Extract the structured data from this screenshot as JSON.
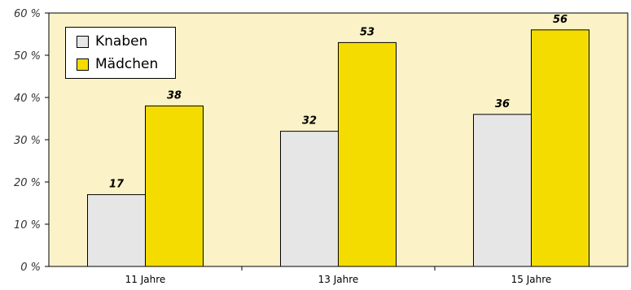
{
  "chart_data": {
    "type": "bar",
    "categories": [
      "11 Jahre",
      "13 Jahre",
      "15 Jahre"
    ],
    "series": [
      {
        "name": "Knaben",
        "values": [
          17,
          32,
          36
        ],
        "color": "#E6E6E6"
      },
      {
        "name": "Mädchen",
        "values": [
          38,
          53,
          56
        ],
        "color": "#F5DC00"
      }
    ],
    "ylim": [
      0,
      60
    ],
    "yticks": [
      0,
      10,
      20,
      30,
      40,
      50,
      60
    ],
    "ytick_labels": [
      "0 %",
      "10 %",
      "20 %",
      "30 %",
      "40 %",
      "50 %",
      "60 %"
    ],
    "data_labels": [
      [
        "17",
        "32",
        "36"
      ],
      [
        "38",
        "53",
        "56"
      ]
    ],
    "plot_background": "#FBF2C8",
    "legend_position": "top-left",
    "grid": false
  }
}
